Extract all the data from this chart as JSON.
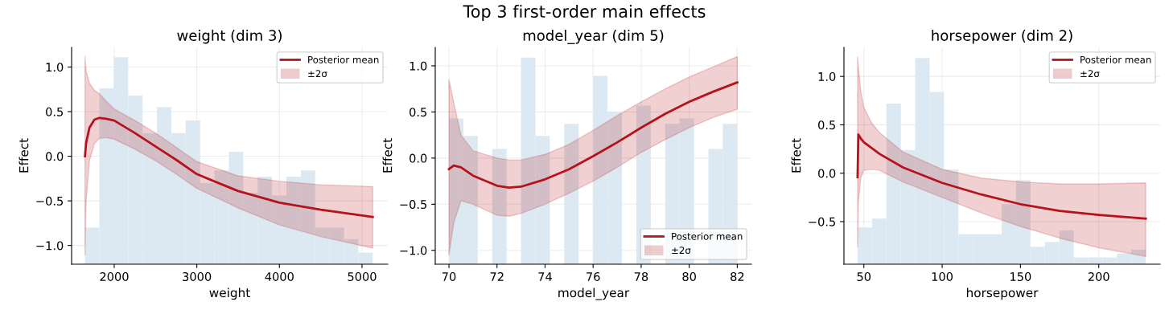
{
  "chart_data": [
    {
      "type": "line",
      "title": "weight (dim 3)",
      "xlabel": "weight",
      "ylabel": "Effect",
      "xlim": [
        1484,
        5312
      ],
      "ylim": [
        -1.21,
        1.22
      ],
      "xticks": [
        2000,
        3000,
        4000,
        5000
      ],
      "yticks": [
        {
          "value": -1.0,
          "label": "−1.0"
        },
        {
          "value": -0.5,
          "label": "−0.5"
        },
        {
          "value": 0.0,
          "label": "0.0"
        },
        {
          "value": 0.5,
          "label": "0.5"
        },
        {
          "value": 1.0,
          "label": "1.0"
        }
      ],
      "grid": true,
      "legend": "top right",
      "annotations": [
        "±2σ",
        "Top 3 first-order main effects"
      ],
      "series": [
        {
          "type": "histogram",
          "color": "#dce9f2",
          "bins": [
            1646,
            1820,
            1994,
            2169,
            2343,
            2517,
            2691,
            2865,
            3040,
            3214,
            3388,
            3562,
            3736,
            3911,
            4085,
            4259,
            4433,
            4607,
            4782,
            4956,
            5130
          ],
          "base": [
            -1.21,
            -1.21,
            -1.21,
            -1.21,
            -1.21,
            -1.21,
            -1.21,
            -1.21,
            -1.21,
            -1.21,
            -1.21,
            -1.21,
            -1.21,
            -1.21,
            -1.21,
            -1.21,
            -1.21,
            -1.21,
            -1.21,
            -1.21
          ],
          "values": [
            0.41,
            1.97,
            2.32,
            1.89,
            1.47,
            1.76,
            1.47,
            1.61,
            0.91,
            1.05,
            1.26,
            0.8,
            0.98,
            0.77,
            0.98,
            1.05,
            0.41,
            0.41,
            0.28,
            0.13
          ]
        },
        {
          "name": "Posterior mean",
          "color": "#b5121b",
          "x": [
            1646,
            1660,
            1700,
            1760,
            1821,
            1900,
            2000,
            2250,
            2500,
            2750,
            3000,
            3500,
            4000,
            4500,
            5130
          ],
          "values": [
            0.0,
            0.15,
            0.32,
            0.41,
            0.43,
            0.42,
            0.4,
            0.26,
            0.11,
            -0.04,
            -0.2,
            -0.39,
            -0.52,
            -0.6,
            -0.68
          ],
          "upper": [
            1.12,
            0.95,
            0.82,
            0.74,
            0.7,
            0.62,
            0.53,
            0.4,
            0.26,
            0.1,
            -0.06,
            -0.22,
            -0.28,
            -0.32,
            -0.34
          ],
          "lower": [
            -1.11,
            -0.5,
            -0.05,
            0.14,
            0.2,
            0.21,
            0.19,
            0.08,
            -0.05,
            -0.2,
            -0.36,
            -0.58,
            -0.77,
            -0.9,
            -1.03
          ]
        }
      ]
    },
    {
      "type": "line",
      "title": "model_year (dim 5)",
      "xlabel": "model_year",
      "ylabel": "Effect",
      "xlim": [
        69.43,
        82.59
      ],
      "ylim": [
        -1.15,
        1.2
      ],
      "xticks": [
        70,
        72,
        74,
        76,
        78,
        80,
        82
      ],
      "yticks": [
        {
          "value": -1.0,
          "label": "−1.0"
        },
        {
          "value": -0.5,
          "label": "−0.5"
        },
        {
          "value": 0.0,
          "label": "0.0"
        },
        {
          "value": 0.5,
          "label": "0.5"
        },
        {
          "value": 1.0,
          "label": "1.0"
        }
      ],
      "grid": true,
      "legend": "bottom right",
      "annotations": [
        "±2σ"
      ],
      "series": [
        {
          "type": "histogram",
          "color": "#dce9f2",
          "bins": [
            70,
            70.6,
            71.2,
            71.8,
            72.4,
            73.0,
            73.6,
            74.2,
            74.8,
            75.4,
            76.0,
            76.6,
            77.2,
            77.8,
            78.4,
            79.0,
            79.6,
            80.2,
            80.8,
            81.4,
            82.0
          ],
          "base": [
            -1.15,
            -1.15,
            null,
            -1.15,
            null,
            -1.15,
            -1.15,
            null,
            -1.15,
            null,
            -1.15,
            -1.15,
            null,
            -1.15,
            null,
            -1.15,
            -1.15,
            null,
            -1.15,
            -1.15
          ],
          "values": [
            1.58,
            1.39,
            null,
            1.25,
            null,
            2.24,
            1.39,
            null,
            1.52,
            null,
            2.04,
            1.65,
            null,
            1.72,
            null,
            1.52,
            1.58,
            null,
            1.25,
            1.52
          ]
        },
        {
          "name": "Posterior mean",
          "color": "#b5121b",
          "x": [
            70,
            70.2,
            70.5,
            71,
            72,
            72.5,
            73,
            74,
            75,
            76,
            77,
            78,
            79,
            80,
            81,
            82
          ],
          "values": [
            -0.12,
            -0.08,
            -0.1,
            -0.19,
            -0.3,
            -0.32,
            -0.31,
            -0.23,
            -0.12,
            0.02,
            0.17,
            0.33,
            0.48,
            0.61,
            0.72,
            0.82
          ],
          "upper": [
            0.85,
            0.6,
            0.25,
            0.08,
            0.0,
            -0.02,
            -0.02,
            0.04,
            0.15,
            0.3,
            0.46,
            0.61,
            0.75,
            0.88,
            0.99,
            1.1
          ],
          "lower": [
            -1.05,
            -0.7,
            -0.46,
            -0.5,
            -0.62,
            -0.63,
            -0.6,
            -0.5,
            -0.38,
            -0.25,
            -0.1,
            0.06,
            0.2,
            0.33,
            0.44,
            0.53
          ]
        }
      ]
    },
    {
      "type": "line",
      "title": "horsepower (dim 2)",
      "xlabel": "horsepower",
      "ylabel": "Effect",
      "xlim": [
        37.3,
        239.2
      ],
      "ylim": [
        -0.94,
        1.3
      ],
      "xticks": [
        50,
        100,
        150,
        200
      ],
      "annotations": [
        "±2σ"
      ],
      "yticks": [
        {
          "value": -0.5,
          "label": "−0.5"
        },
        {
          "value": 0.0,
          "label": "0.0"
        },
        {
          "value": 0.5,
          "label": "0.5"
        },
        {
          "value": 1.0,
          "label": "1.0"
        }
      ],
      "grid": true,
      "legend": "top right",
      "series": [
        {
          "type": "histogram",
          "color": "#dce9f2",
          "bins": [
            46,
            55.2,
            64.4,
            73.6,
            82.8,
            92.0,
            101.2,
            110.4,
            119.6,
            128.8,
            138.0,
            147.2,
            156.4,
            165.6,
            174.8,
            184.0,
            193.2,
            202.4,
            211.6,
            220.8,
            230.0
          ],
          "base": [
            -0.94,
            -0.94,
            -0.94,
            -0.94,
            -0.94,
            -0.94,
            -0.94,
            -0.94,
            -0.94,
            -0.94,
            -0.94,
            -0.94,
            -0.94,
            -0.94,
            -0.94,
            -0.94,
            -0.94,
            -0.94,
            -0.94,
            -0.94
          ],
          "values": [
            0.38,
            0.47,
            1.66,
            1.18,
            2.13,
            1.78,
            0.98,
            0.31,
            0.31,
            0.31,
            0.62,
            0.87,
            0.18,
            0.23,
            0.35,
            0.07,
            0.07,
            0.07,
            0.11,
            0.15
          ]
        },
        {
          "name": "Posterior mean",
          "color": "#b5121b",
          "x": [
            46,
            46.5,
            48,
            50,
            55,
            60,
            75,
            100,
            125,
            150,
            175,
            200,
            230
          ],
          "values": [
            -0.04,
            0.4,
            0.36,
            0.32,
            0.26,
            0.2,
            0.06,
            -0.1,
            -0.22,
            -0.32,
            -0.39,
            -0.43,
            -0.47
          ],
          "upper": [
            1.2,
            1.1,
            0.85,
            0.68,
            0.52,
            0.42,
            0.22,
            0.04,
            -0.05,
            -0.09,
            -0.11,
            -0.11,
            -0.1
          ],
          "lower": [
            -0.76,
            -0.3,
            -0.05,
            0.03,
            0.04,
            0.03,
            -0.09,
            -0.25,
            -0.41,
            -0.55,
            -0.67,
            -0.77,
            -0.86
          ]
        }
      ]
    }
  ]
}
